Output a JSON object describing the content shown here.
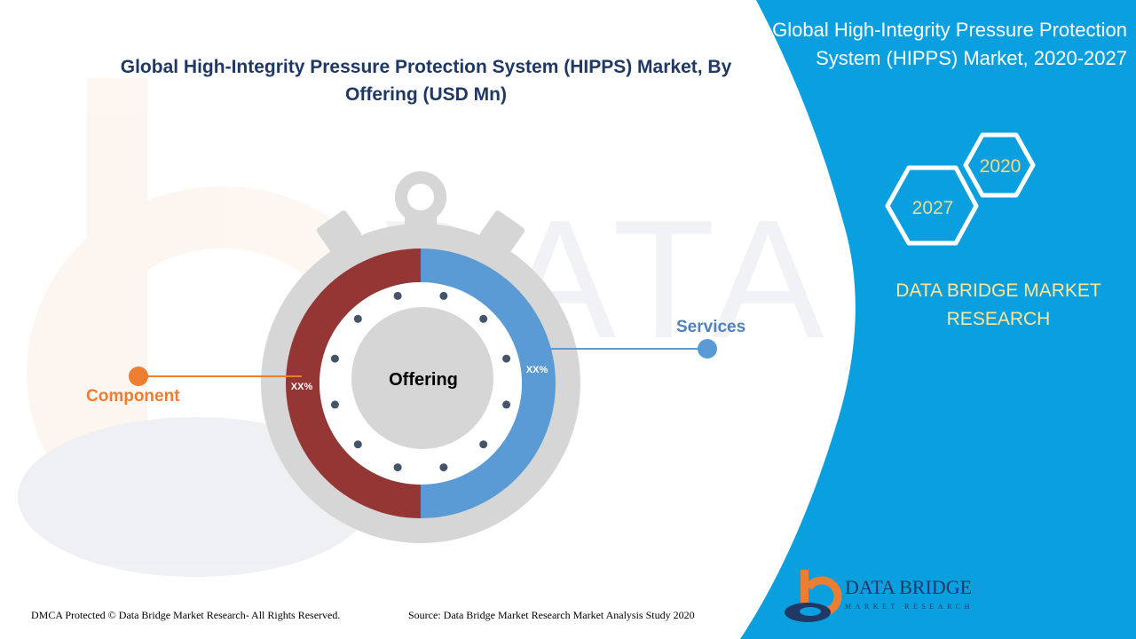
{
  "header": {
    "chart_title": "Global High-Integrity Pressure Protection System (HIPPS) Market, By Offering (USD Mn)",
    "panel_title": "Global High-Integrity Pressure Protection System (HIPPS) Market, 2020-2027"
  },
  "years": {
    "start": "2020",
    "end": "2027"
  },
  "brand": {
    "name": "DATA BRIDGE MARKET RESEARCH",
    "logo_text": "DATA BRIDGE",
    "logo_subtext": "MARKET RESEARCH"
  },
  "watermark_text": "DATA BRIDGE MARKET RESEARCH",
  "colors": {
    "panel_blue": "#0aa0e0",
    "component": "#943634",
    "services": "#5b9bd5",
    "component_label": "#ed7d31",
    "services_label": "#4f81bd",
    "dial_grey": "#d6d6d6",
    "title_navy": "#1f3864",
    "brand_yellow": "#ffe699"
  },
  "chart_data": {
    "type": "pie",
    "title": "Global High-Integrity Pressure Protection System (HIPPS) Market, By Offering (USD Mn)",
    "center_label": "Offering",
    "slices": [
      {
        "name": "Component",
        "label": "XX%",
        "value": 50,
        "color": "#943634"
      },
      {
        "name": "Services",
        "label": "XX%",
        "value": 50,
        "color": "#5b9bd5"
      }
    ]
  },
  "footer": {
    "copyright": "DMCA Protected © Data Bridge Market Research- All Rights Reserved.",
    "source": "Source: Data Bridge Market Research Market Analysis Study 2020"
  }
}
